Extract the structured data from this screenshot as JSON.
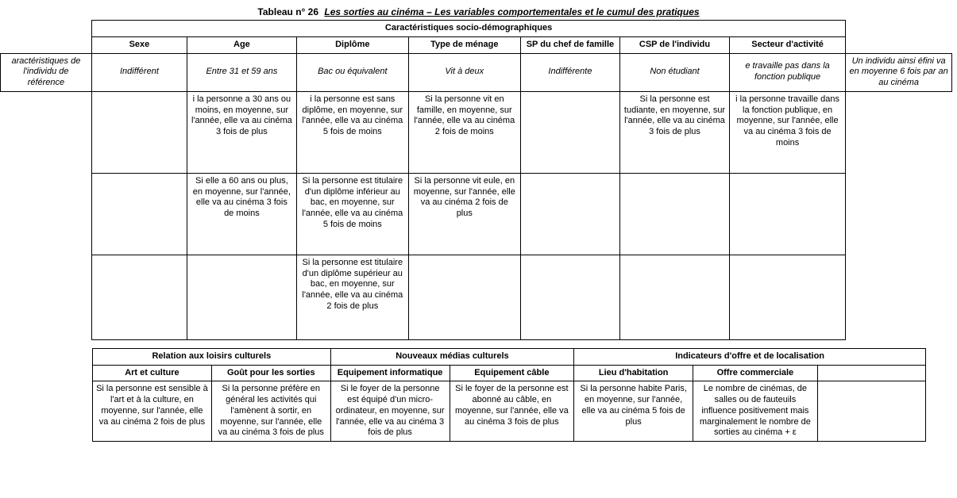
{
  "title_label": "Tableau n° 26",
  "title_value": "Les sorties au cinéma – Les variables comportementales et le cumul des pratiques",
  "t1": {
    "section": "Caractéristiques socio-démographiques",
    "stub_label": "aractéristiques de l'individu de référence",
    "headers": [
      "Sexe",
      "Age",
      "Diplôme",
      "Type de ménage",
      "SP du chef de famille",
      "CSP de l'individu",
      "Secteur d'activité"
    ],
    "ref_row": [
      "Indifférent",
      "Entre 31 et 59 ans",
      "Bac ou équivalent",
      "Vit à deux",
      "Indifférente",
      "Non étudiant",
      "e travaille pas dans la fonction publique"
    ],
    "right_note": "Un individu ainsi éfini va en moyenne 6 fois par an au cinéma",
    "r2_age": {
      "lead": "i la personne a 30 ans ou moins, en moyenne, sur l'année, elle va au cinéma",
      "out": "3 fois de plus"
    },
    "r2_dip": {
      "lead": "i la personne est sans diplôme, en moyenne, sur l'année, elle va au cinéma",
      "out": "5 fois de moins"
    },
    "r2_men": {
      "lead": "Si la personne vit en famille, en moyenne, sur l'année, elle va au cinéma",
      "out": "2 fois de moins"
    },
    "r2_csp": {
      "lead": "Si la personne est tudiante, en moyenne, sur l'année, elle va au cinéma",
      "out": "3 fois de plus"
    },
    "r2_sec": {
      "lead": "i la personne travaille dans la fonction publique, en moyenne, sur l'année, elle va au cinéma",
      "out": "3 fois de moins"
    },
    "r3_age": {
      "lead": "Si elle a 60 ans ou plus, en moyenne, sur l'année, elle va au cinéma",
      "out": "3 fois de moins"
    },
    "r3_dip": {
      "lead": "Si la personne est titulaire d'un diplôme inférieur au bac, en moyenne, sur l'année, elle va au cinéma",
      "out": "5 fois de moins"
    },
    "r3_men": {
      "lead": "Si la personne vit eule, en moyenne, sur l'année, elle va au cinéma",
      "out": "2 fois de plus"
    },
    "r4_dip": {
      "lead": "Si la personne est titulaire d'un diplôme supérieur au bac, en moyenne, sur l'année, elle va au cinéma",
      "out": "2 fois de plus"
    }
  },
  "t2": {
    "group_labels": [
      "Relation aux loisirs culturels",
      "Nouveaux médias culturels",
      "Indicateurs d'offre et de localisation"
    ],
    "headers": [
      "Art et culture",
      "Goût pour les sorties",
      "Equipement informatique",
      "Equipement câble",
      "Lieu d'habitation",
      "Offre commerciale",
      ""
    ],
    "r_art": {
      "lead": "Si la personne est sensible à l'art et à la culture, en moyenne, sur l'année, elle va au cinéma",
      "out": "2 fois de plus"
    },
    "r_gout": {
      "lead": "Si la personne préfère en général les activités qui l'amènent à sortir, en moyenne, sur l'année, elle va au cinéma",
      "out": "3 fois de plus"
    },
    "r_info": {
      "lead": "Si le foyer de la personne est équipé d'un micro-ordinateur, en moyenne, sur l'année, elle va au cinéma",
      "out": "3 fois de plus"
    },
    "r_cable": {
      "lead": "Si le foyer de la personne est abonné au câble, en moyenne, sur l'année, elle va au cinéma",
      "out": "3 fois de plus"
    },
    "r_lieu": {
      "lead": "Si la personne habite Paris, en moyenne, sur l'année, elle va au cinéma",
      "out": "5 fois de plus"
    },
    "r_offre": {
      "lead": "Le nombre de cinémas, de salles ou de fauteuils influence positivement mais marginalement le nombre de sorties au cinéma",
      "out": "+ ε"
    }
  },
  "style": {
    "page_bg": "#ffffff",
    "text_color": "#000000",
    "border_color": "#000000",
    "font_family": "Comic Sans MS",
    "base_font_size_pt": 8,
    "header_font_weight": 700,
    "title_font_size_pt": 9
  }
}
